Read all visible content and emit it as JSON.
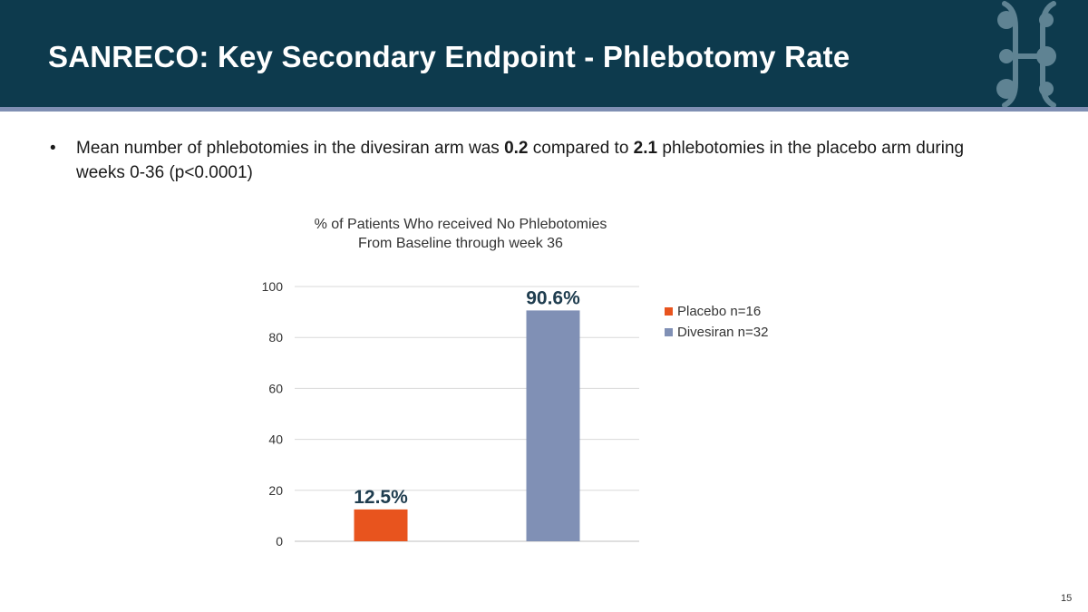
{
  "header": {
    "title": "SANRECO: Key Secondary Endpoint - Phlebotomy Rate",
    "logo_icon": "molecule-logo-icon"
  },
  "bullet": {
    "marker": "•",
    "text_1": "Mean number of phlebotomies in the divesiran arm was ",
    "value_1": "0.2",
    "text_2": " compared to ",
    "value_2": "2.1",
    "text_3": " phlebotomies in the placebo arm during weeks 0-36 (p<0.0001)"
  },
  "chart_data": {
    "type": "bar",
    "title_line1": "% of Patients Who received No Phlebotomies",
    "title_line2": "From Baseline through week 36",
    "ylim": [
      0,
      100
    ],
    "yticks": [
      0,
      20,
      40,
      60,
      80,
      100
    ],
    "grid": true,
    "legend_position": "right",
    "series": [
      {
        "name": "Placebo n=16",
        "value": 12.5,
        "label": "12.5%",
        "color": "#e8541e"
      },
      {
        "name": "Divesiran n=32",
        "value": 90.6,
        "label": "90.6%",
        "color": "#8090b5"
      }
    ]
  },
  "footer": {
    "page_number": "15"
  },
  "colors": {
    "header_bg": "#0d3a4d",
    "accent_rule": "#7f8fb3",
    "label_text": "#1f3d4f"
  }
}
